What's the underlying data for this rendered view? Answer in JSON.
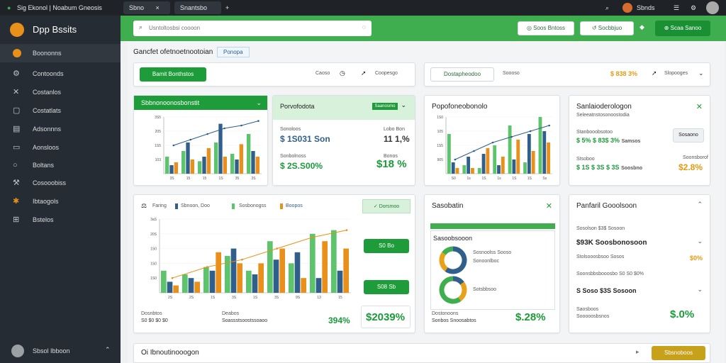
{
  "browser": {
    "tab_title": "Sig Ekonol | Noabum Gneosis",
    "tab2": "Sbno",
    "tab3": "Snantsbo",
    "close": "×",
    "plus": "+",
    "profile": "Sbnds"
  },
  "app": {
    "name": "Dpp Bssits",
    "user": "Sbsol Ibboon"
  },
  "sidebar": {
    "items": [
      {
        "label": "Boononns",
        "icon": "orange-circle"
      },
      {
        "label": "Contoonds",
        "icon": "gear-icon"
      },
      {
        "label": "Costanlos",
        "icon": "cross-icon"
      },
      {
        "label": "Costatlats",
        "icon": "box-icon"
      },
      {
        "label": "Adsonnns",
        "icon": "list-icon"
      },
      {
        "label": "Aonsloos",
        "icon": "doc-icon"
      },
      {
        "label": "Boltans",
        "icon": "circle-icon"
      },
      {
        "label": "Cosooobiss",
        "icon": "wrench-icon"
      },
      {
        "label": "Ibtaogols",
        "icon": "puzzle-icon"
      },
      {
        "label": "Bstelos",
        "icon": "grid-icon"
      }
    ]
  },
  "search": {
    "placeholder": "Usntoltosbsi coooon"
  },
  "topbar": {
    "btn1": "Soos Bntoss",
    "btn2": "Socbbjuo",
    "btn3": "Scaa Sanoo"
  },
  "page": {
    "title": "Gancfet ofetnoetnootoian",
    "badge": "Ponopa"
  },
  "filter1": {
    "button": "Bamit Bonthstos",
    "opt1": "Caoso",
    "opt2": "Coopesgo"
  },
  "filter2": {
    "button": "Dostapheodoo",
    "opt1": "Soooso",
    "value": "$ 838 3%",
    "opt2": "Slopooges"
  },
  "card_a": {
    "header": "Sbbnonoonosbonstit",
    "ylabels": [
      "3S5",
      "205",
      "1S5",
      "103"
    ],
    "xlabels": [
      "3S",
      "15",
      "15",
      "1S",
      "35",
      "3S"
    ]
  },
  "card_b": {
    "header": "Porvofodota",
    "badge": "Saanosrno",
    "lab1": "Sonoloos",
    "val1": "$ 1S031 Son",
    "lab2": "Lobo Bon",
    "val2": "11 1,%",
    "lab3": "Sonbolnoss",
    "val3": "$ 2S.S00%",
    "lab4": "Bonos",
    "val4": "$18 %"
  },
  "card_c": {
    "header": "Popofoneobonolo",
    "ylabels": [
      "1S0",
      "105",
      "1S5",
      "905"
    ],
    "xlabels": [
      "S0",
      "1s",
      "1S",
      "1s",
      "1S",
      "1S",
      "Ss"
    ]
  },
  "card_d": {
    "header": "Sanlaioderologon",
    "sub": "Seleeatnstosonoostodia",
    "lab1": "Stanbooobsotoo",
    "row1": "$ 5% $ 83$ 3%",
    "row1b": "Samsos",
    "btn": "Sosaono",
    "lab2": "Stsoboo",
    "row2": "$ 1S $ 3S $ 3S",
    "row2b": "Soosbno",
    "lab3": "Soonsborof",
    "val3": "$2.8%"
  },
  "card_e": {
    "legend": [
      "Faring",
      "Sbnoon, Doo",
      "Sosbonogss",
      "Boopos"
    ],
    "badge": "Dorsmoo",
    "ylabels": [
      "3aS",
      "20S",
      "1S0",
      "1S0",
      "1S0"
    ],
    "xlabels": [
      "2S",
      "2S",
      "1S",
      "3S",
      "1S",
      "3S",
      "9S",
      "13",
      "15"
    ],
    "btn1": "S0 Bo",
    "btn2": "S08 Sb",
    "lab1": "Dosnbtos",
    "val1": "S0 $0 $0 $0",
    "lab2": "Deabos",
    "val2": "Soassstsoostssoaoo",
    "mid": "394%",
    "big": "$2039%"
  },
  "card_f": {
    "header": "Sasobatin",
    "title": "Sasoobsooon",
    "lg1": "Sosnoolss Sooso",
    "lg2": "Sonoonlboc",
    "lg3": "Sotsbbsoo",
    "lab1": "Dostonoons",
    "row1": "Sonbos Snoosabtos",
    "val": "$.28%"
  },
  "card_g": {
    "header": "Panfaril Gooolsoon",
    "r1": "Sosolson $3$ Sosoon",
    "r2": "$93K  Soosbonosoon",
    "r3": "Stolsooosbsoo  Sosos",
    "r3v": "$0%",
    "r4": "Soonsbbsbooosbo  S0 S0  $0%",
    "r5": "S Soso $3S Sosoon",
    "lab": "Saosboos",
    "sub": "Sooooosbsnos",
    "val": "$.0%"
  },
  "bottom": {
    "title": "Oi Ibnoutinooogon",
    "btn": "Sbsnoboos"
  },
  "chart_data": [
    {
      "type": "bar",
      "categories": [
        "3S",
        "15",
        "15",
        "1S",
        "35",
        "3S"
      ],
      "ylabels": [
        "3S5",
        "205",
        "1S5",
        "103"
      ],
      "series": [
        {
          "values": [
            30,
            40,
            22,
            55,
            35,
            70
          ]
        },
        {
          "values": [
            15,
            55,
            30,
            88,
            25,
            40
          ]
        },
        {
          "values": [
            20,
            25,
            45,
            30,
            52,
            30
          ]
        }
      ],
      "line": [
        50,
        60,
        70,
        80,
        85,
        93
      ],
      "ylim": [
        0,
        100
      ]
    },
    {
      "type": "bar",
      "categories": [
        "S0",
        "1s",
        "1S",
        "1s",
        "1S",
        "1S",
        "Ss"
      ],
      "ylabels": [
        "1S0",
        "105",
        "1S5",
        "905"
      ],
      "series": [
        {
          "values": [
            70,
            15,
            10,
            50,
            85,
            20,
            100
          ]
        },
        {
          "values": [
            20,
            30,
            35,
            15,
            25,
            70,
            75
          ]
        },
        {
          "values": [
            10,
            10,
            45,
            30,
            60,
            40,
            55
          ]
        }
      ],
      "line": [
        25,
        40,
        55,
        65,
        75,
        85
      ],
      "ylim": [
        0,
        100
      ]
    },
    {
      "type": "bar",
      "categories": [
        "2S",
        "2S",
        "1S",
        "3S",
        "1S",
        "3S",
        "9S",
        "13",
        "15"
      ],
      "ylabels": [
        "3aS",
        "20S",
        "1S0",
        "1S0",
        "1S0"
      ],
      "series": [
        {
          "values": [
            30,
            25,
            35,
            50,
            30,
            70,
            40,
            80,
            85
          ]
        },
        {
          "values": [
            15,
            20,
            30,
            60,
            25,
            45,
            55,
            20,
            30
          ]
        },
        {
          "values": [
            10,
            15,
            55,
            40,
            40,
            60,
            20,
            70,
            60
          ]
        }
      ],
      "line": [
        20,
        35,
        45,
        60,
        75,
        85
      ],
      "ylim": [
        0,
        100
      ]
    },
    {
      "type": "pie",
      "values": [
        60,
        25,
        15
      ]
    }
  ],
  "colors": {
    "green": "#3fae4e",
    "dark_green": "#1e9c3a",
    "blue": "#2f5f8a",
    "orange": "#e8901a",
    "light_green": "#5cc46b",
    "sidebar": "#262c33"
  }
}
